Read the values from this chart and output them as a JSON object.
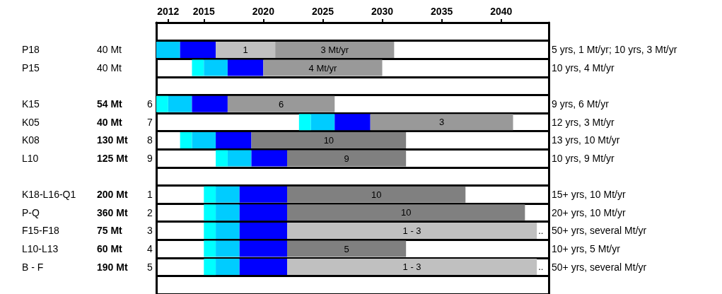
{
  "chart_data": {
    "type": "bar",
    "orientation": "horizontal",
    "categories": [
      null,
      "P18",
      "P15",
      null,
      "K15",
      "K05",
      "K08",
      "L10",
      null,
      "K18-L16-Q1",
      "P-Q",
      "F15-F18",
      "L10-L13",
      "B - F",
      null
    ],
    "y2_categories": [
      null,
      "5 yrs, 1 Mt/yr; 10 yrs, 3 Mt/yr",
      "10 yrs, 4 Mt/yr",
      null,
      "9 yrs, 6 Mt/yr",
      "12 yrs, 3 Mt/yr",
      "13 yrs, 10 Mt/yr",
      "10 yrs, 9 Mt/yr",
      null,
      "15+ yrs, 10 Mt/yr",
      "20+ yrs, 10 Mt/yr",
      "50+ yrs, several Mt/yr",
      "10+ yrs, 5 Mt/yr",
      "50+ yrs, several Mt/yr",
      null
    ],
    "series": [
      {
        "color": "#00ffff",
        "base": [
          null,
          null,
          2014,
          null,
          2011,
          2023,
          2013,
          2016,
          null,
          2015,
          2015,
          2015,
          2015,
          2015,
          null
        ],
        "values": [
          null,
          null,
          1,
          null,
          1,
          1,
          1,
          1,
          null,
          1,
          1,
          1,
          1,
          1,
          null
        ]
      },
      {
        "color": "#00ccff",
        "base": [
          null,
          2011,
          2015,
          null,
          2012,
          2024,
          2014,
          2017,
          null,
          2016,
          2016,
          2016,
          2016,
          2016,
          null
        ],
        "values": [
          null,
          2,
          2,
          null,
          2,
          2,
          2,
          2,
          null,
          2,
          2,
          2,
          2,
          2,
          null
        ]
      },
      {
        "color": "#0000ff",
        "base": [
          null,
          2013,
          2017,
          null,
          2014,
          2026,
          2016,
          2019,
          null,
          2018,
          2018,
          2018,
          2018,
          2018,
          null
        ],
        "values": [
          null,
          3,
          3,
          null,
          3,
          3,
          3,
          3,
          null,
          4,
          4,
          4,
          4,
          4,
          null
        ]
      },
      {
        "colors": [
          null,
          "#c0c0c0",
          "#999999",
          null,
          "#999999",
          "#999999",
          "#808080",
          "#808080",
          null,
          "#808080",
          "#808080",
          "#c0c0c0",
          "#808080",
          "#c0c0c0",
          null
        ],
        "base": [
          null,
          2016,
          2020,
          null,
          2017,
          2029,
          2019,
          2022,
          null,
          2022,
          2022,
          2022,
          2022,
          2022,
          null
        ],
        "values": [
          null,
          5,
          10,
          null,
          9,
          12,
          13,
          10,
          null,
          15,
          20,
          21,
          10,
          21,
          null
        ]
      },
      {
        "color": "#999999",
        "base": [
          null,
          2021,
          null,
          null,
          null,
          null,
          null,
          null,
          null,
          null,
          null,
          null,
          null,
          null,
          null
        ],
        "values": [
          null,
          10,
          null,
          null,
          null,
          null,
          null,
          null,
          null,
          null,
          null,
          null,
          null,
          null,
          null
        ]
      }
    ],
    "xlim": [
      2011,
      2044
    ],
    "xticks": [
      2012,
      2015,
      2020,
      2025,
      2030,
      2035,
      2040
    ],
    "grid": "y",
    "annotations": [
      "40 Mt",
      "1",
      "3 Mt/yr",
      "40 Mt",
      "4 Mt/yr",
      "54 Mt",
      "6",
      "6",
      "40 Mt",
      "7",
      "3",
      "130 Mt",
      "8",
      "10",
      "125 Mt",
      "9",
      "9",
      "200 Mt",
      "1",
      "10",
      "360 Mt",
      "2",
      "10",
      "75 Mt",
      "3",
      "1 - 3",
      "..",
      "60 Mt",
      "4",
      "5",
      "190 Mt",
      "5",
      "1 - 3",
      ".."
    ]
  }
}
